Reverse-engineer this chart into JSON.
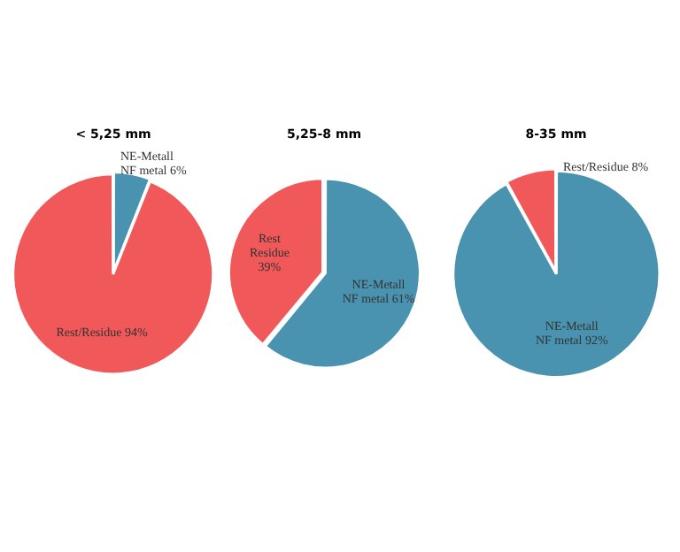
{
  "chart_data": [
    {
      "type": "pie",
      "title": "< 5,25 mm",
      "categories": [
        null,
        null
      ],
      "values": [
        6,
        94
      ],
      "colors": [
        "#4a93b0",
        "#f0585a"
      ],
      "value_labels": [
        "NE-Metall\nNF metal 6%",
        "Rest/Residue 94%"
      ]
    },
    {
      "type": "pie",
      "title": "5,25-8 mm",
      "categories": [
        null,
        null
      ],
      "values": [
        61,
        39
      ],
      "colors": [
        "#4a93b0",
        "#f0585a"
      ],
      "value_labels": [
        "NE-Metall\nNF metal 61%",
        "Rest\nResidue\n39%"
      ]
    },
    {
      "type": "pie",
      "title": "8-35 mm",
      "categories": [
        null,
        null
      ],
      "values": [
        92,
        8
      ],
      "colors": [
        "#4a93b0",
        "#f0585a"
      ],
      "value_labels": [
        "NE-Metall\nNF metal 92%",
        "Rest/Residue 8%"
      ]
    }
  ]
}
